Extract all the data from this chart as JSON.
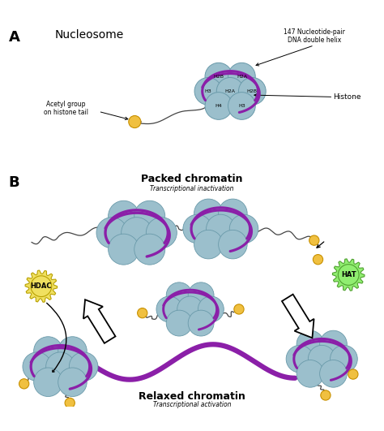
{
  "bg_color": "#ffffff",
  "histone_color": "#9bbfcc",
  "histone_edge_color": "#6a9aaa",
  "dna_color": "#8b1fa8",
  "acetyl_color": "#f0c040",
  "acetyl_edge": "#c89000",
  "hat_color": "#90ee70",
  "hat_edge": "#50a030",
  "hdac_color": "#f0e060",
  "hdac_edge": "#b8a000",
  "arrow_color": "#000000",
  "label_A": "A",
  "label_B": "B",
  "title_nucleosome": "Nucleosome",
  "title_packed": "Packed chromatin",
  "subtitle_packed": "Transcriptional inactivation",
  "title_relaxed": "Relaxed chromatin",
  "subtitle_relaxed": "Transcriptional activation",
  "label_acetyl": "Acetyl group\non histone tail",
  "label_histone": "Histone",
  "label_dna": "147 Nucleotide-pair\nDNA double helix",
  "label_hdac": "HDAC",
  "label_hat": "HAT",
  "line_color": "#444444"
}
